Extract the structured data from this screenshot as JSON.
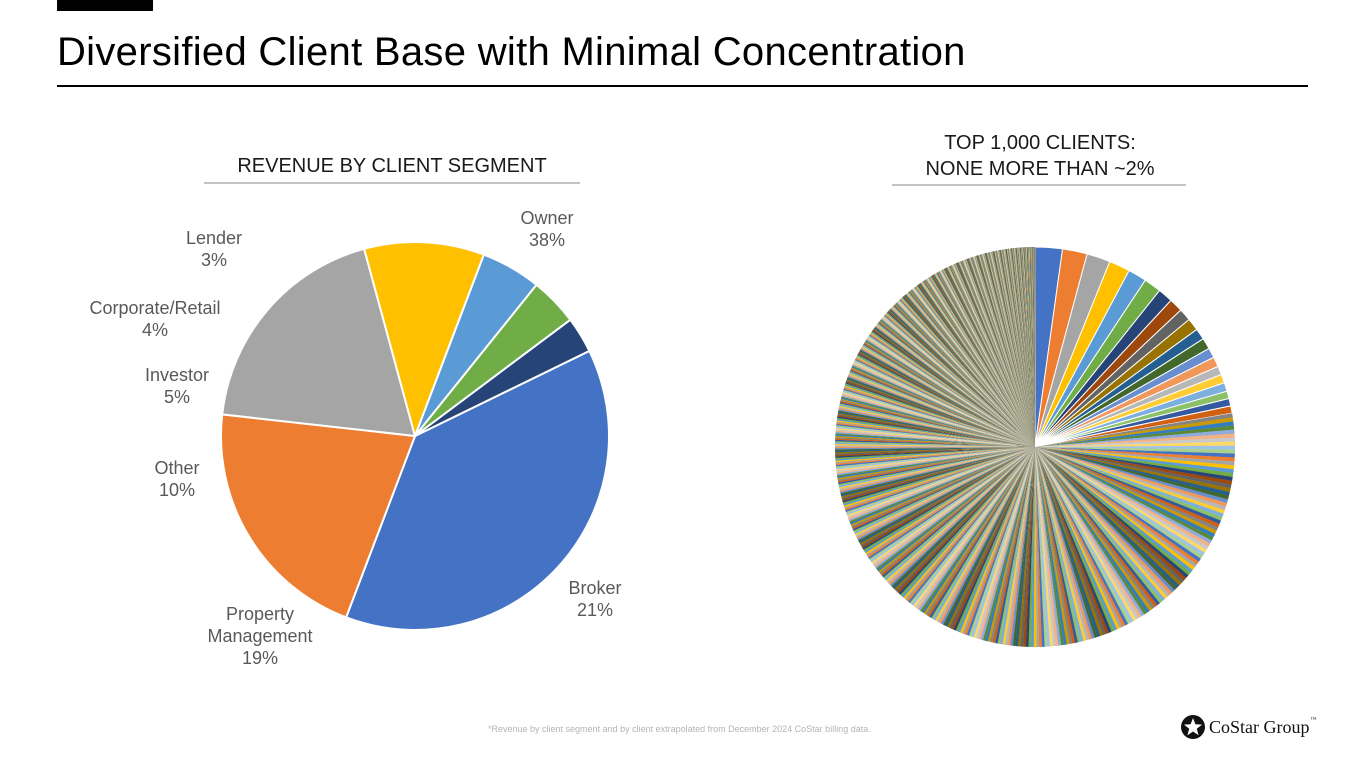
{
  "page": {
    "title": "Diversified Client Base with Minimal Concentration",
    "footnote": "*Revenue by client segment and by client extrapolated from December 2024 CoStar billing data.",
    "logo": {
      "text": "CoStar Group",
      "trademark": "™"
    }
  },
  "colors": {
    "owner": "#4472C4",
    "broker": "#ED7D31",
    "property_management": "#A5A5A5",
    "other": "#FFC000",
    "investor": "#5B9BD5",
    "corporate_retail": "#70AD47",
    "lender": "#264478"
  },
  "chart_data": [
    {
      "type": "pie",
      "title": "REVENUE BY CLIENT SEGMENT",
      "start_angle_deg": -26,
      "slices": [
        {
          "name": "Owner",
          "value": 38,
          "label": "38%",
          "color": "#4472C4"
        },
        {
          "name": "Broker",
          "value": 21,
          "label": "21%",
          "color": "#ED7D31"
        },
        {
          "name": "Property Management",
          "value": 19,
          "label": "19%",
          "color": "#A5A5A5"
        },
        {
          "name": "Other",
          "value": 10,
          "label": "10%",
          "color": "#FFC000"
        },
        {
          "name": "Investor",
          "value": 5,
          "label": "5%",
          "color": "#5B9BD5"
        },
        {
          "name": "Corporate/Retail",
          "value": 4,
          "label": "4%",
          "color": "#70AD47"
        },
        {
          "name": "Lender",
          "value": 3,
          "label": "3%",
          "color": "#264478"
        }
      ]
    },
    {
      "type": "pie",
      "title": "TOP 1,000 CLIENTS: NONE MORE THAN ~2%",
      "title_lines": [
        "TOP 1,000 CLIENTS:",
        "NONE MORE THAN ~2%"
      ],
      "client_count": 1000,
      "max_share_percent": 2,
      "leading_shares_percent": [
        2.2,
        2.0,
        1.9,
        1.7,
        1.5,
        1.4,
        1.2,
        1.1,
        1.0,
        1.0,
        0.9,
        0.9,
        0.8,
        0.8,
        0.7,
        0.7,
        0.7,
        0.6,
        0.6,
        0.6
      ],
      "palette": [
        "#4472C4",
        "#ED7D31",
        "#A5A5A5",
        "#FFC000",
        "#5B9BD5",
        "#70AD47",
        "#264478",
        "#9E480E",
        "#636363",
        "#997300",
        "#255E91",
        "#43682B",
        "#698ED0",
        "#F1975A",
        "#B7B7B7",
        "#FFCD33",
        "#7CAFDD",
        "#8CC168",
        "#335AA1",
        "#D26012",
        "#848484",
        "#CC9A00",
        "#327DC2",
        "#5A8A39",
        "#8FAADC",
        "#F4B183",
        "#C9C9C9",
        "#FFD966",
        "#9DC3E6",
        "#A9D18E"
      ]
    }
  ]
}
